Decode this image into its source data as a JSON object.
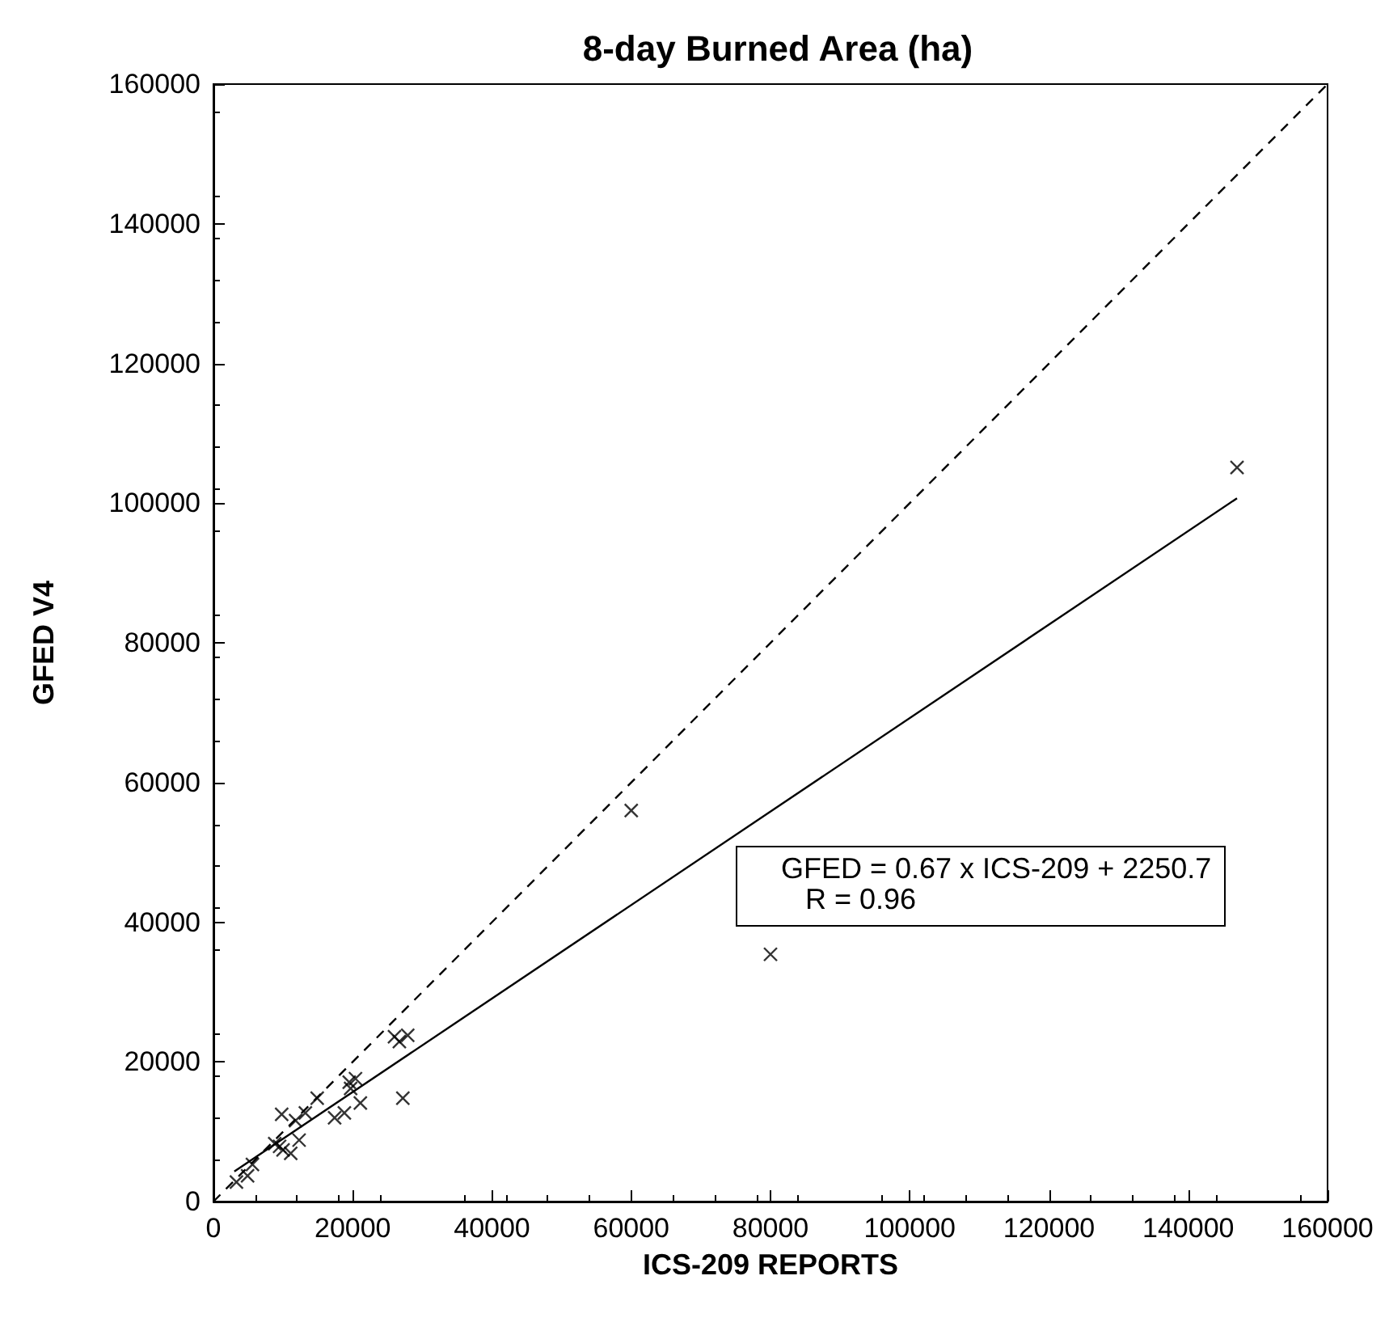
{
  "chart_data": {
    "type": "scatter",
    "title": "8-day Burned Area (ha)",
    "xlabel": "ICS-209 REPORTS",
    "ylabel": "GFED V4",
    "xlim": [
      0,
      160000
    ],
    "ylim": [
      0,
      160000
    ],
    "xticks": [
      0,
      20000,
      40000,
      60000,
      80000,
      100000,
      120000,
      140000,
      160000
    ],
    "yticks": [
      0,
      20000,
      40000,
      60000,
      80000,
      100000,
      120000,
      140000,
      160000
    ],
    "grid": false,
    "annotations": [
      "GFED = 0.67 x ICS-209 + 2250.7",
      "R = 0.96"
    ],
    "series": [
      {
        "marker": "cross",
        "color": "#000000",
        "x": [
          3300,
          4900,
          5600,
          8800,
          9500,
          10000,
          11100,
          12300,
          9800,
          11800,
          13200,
          14900,
          17400,
          18800,
          19500,
          19700,
          20400,
          21100,
          26000,
          26700,
          27900,
          27200,
          60000,
          80000,
          147000
        ],
        "values": [
          2800,
          3700,
          5300,
          8300,
          7900,
          7400,
          6900,
          8800,
          12500,
          11600,
          12700,
          14800,
          12000,
          12700,
          17100,
          16200,
          17600,
          14100,
          23600,
          22900,
          23800,
          14800,
          56000,
          35400,
          105100
        ]
      },
      {
        "type": "line",
        "marker": "none",
        "line_style": "solid",
        "color": "#000000",
        "x": [
          3000,
          147000
        ],
        "values": [
          4300,
          100700
        ]
      },
      {
        "type": "line",
        "marker": "none",
        "line_style": "dashed",
        "color": "#000000",
        "x": [
          0,
          160000
        ],
        "values": [
          0,
          160000
        ]
      }
    ]
  }
}
